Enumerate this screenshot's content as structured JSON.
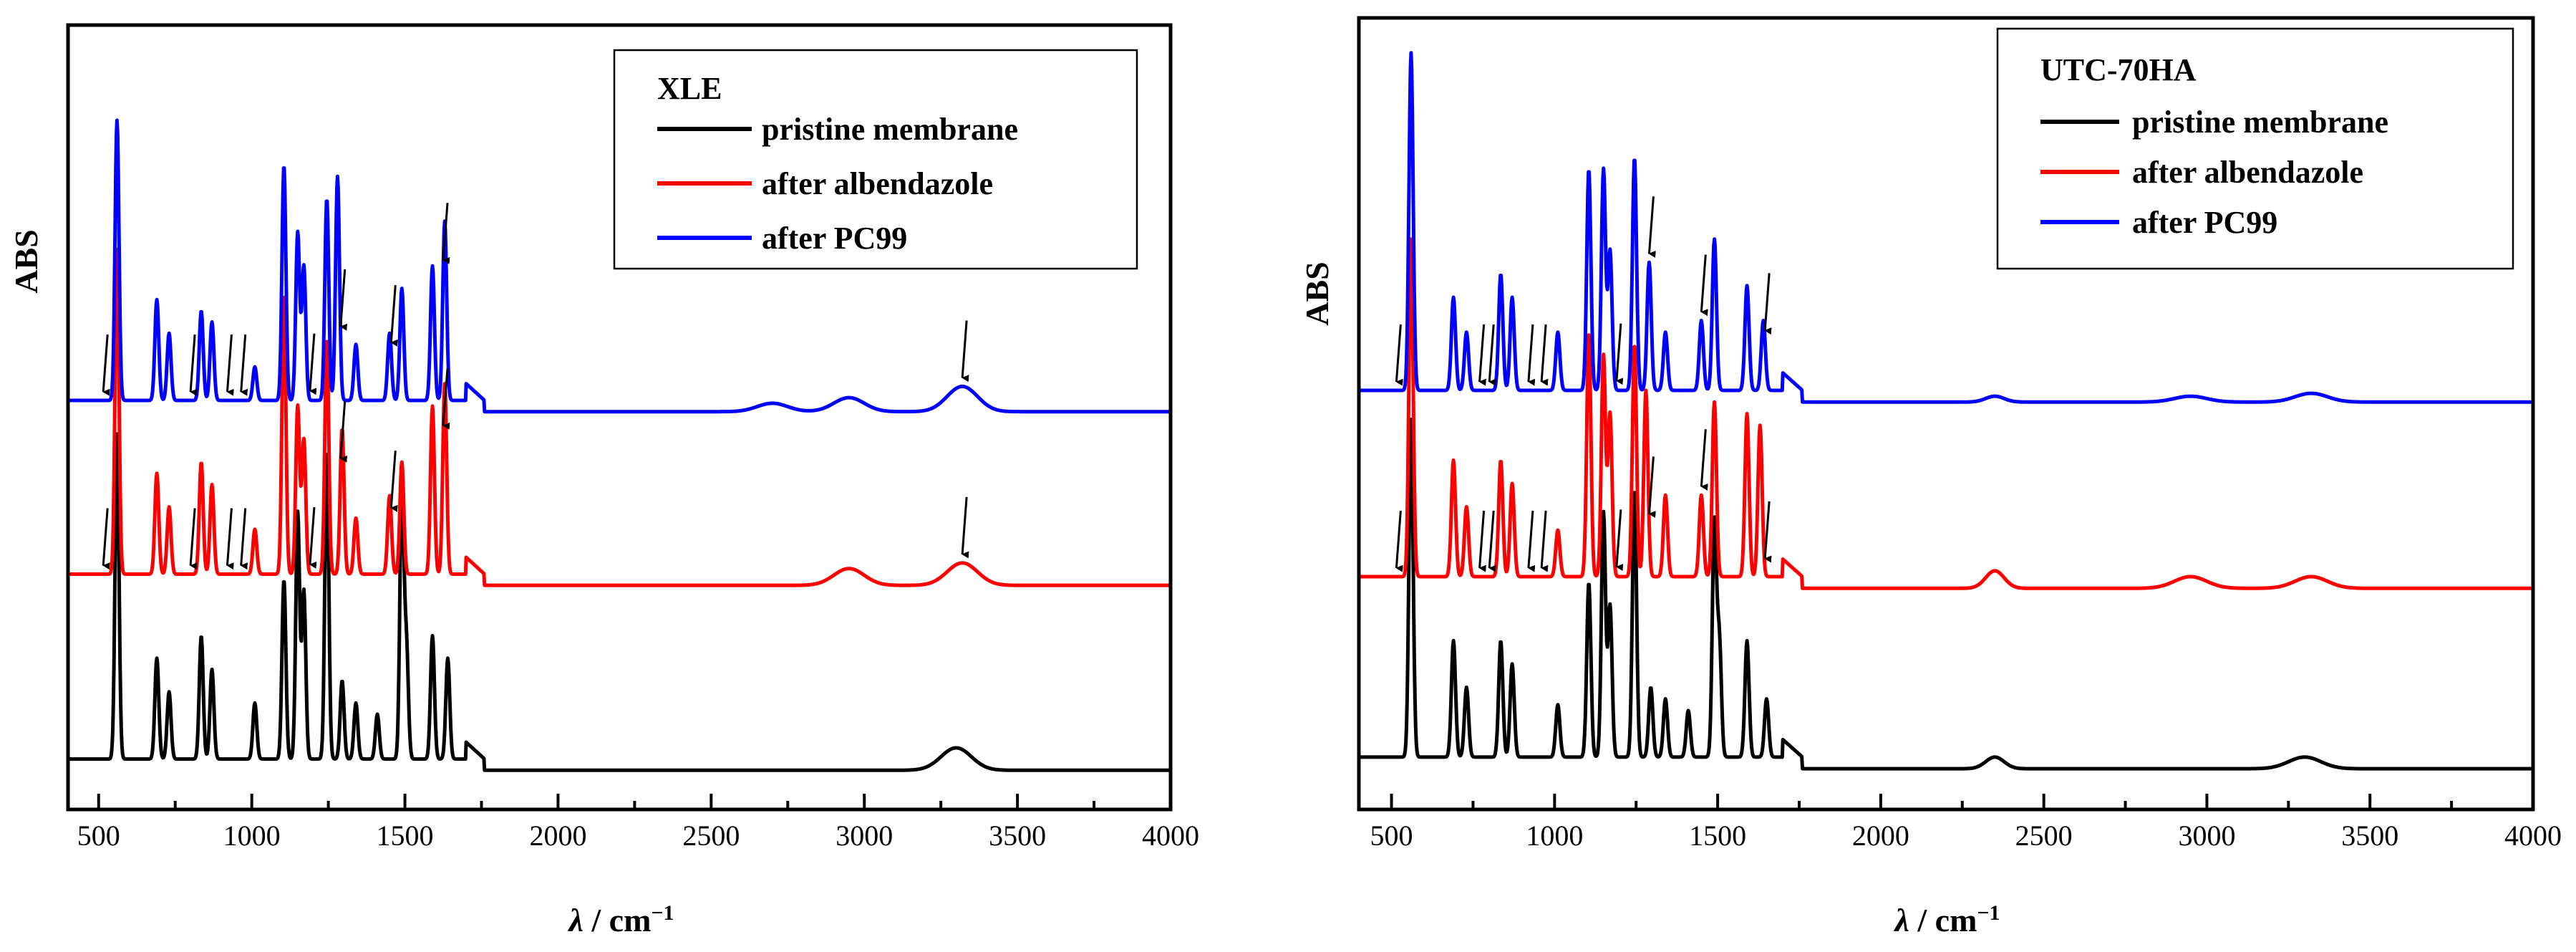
{
  "chart_data": [
    {
      "type": "line",
      "title": "XLE",
      "xlabel_symbol": "λ",
      "xlabel_unit": " / cm",
      "xlabel_exp": "−1",
      "ylabel": "ABS",
      "xlim": [
        400,
        4000
      ],
      "xticks": [
        500,
        1000,
        1500,
        2000,
        2500,
        3000,
        3500,
        4000
      ],
      "legend_position": "top-right",
      "series": [
        {
          "name": "pristine membrane",
          "color": "#000000",
          "baseline": 0.15,
          "peaks": [
            [
              560,
              0.58
            ],
            [
              690,
              0.18
            ],
            [
              730,
              0.12
            ],
            [
              835,
              0.22
            ],
            [
              870,
              0.16
            ],
            [
              1010,
              0.1
            ],
            [
              1105,
              0.32
            ],
            [
              1150,
              0.44
            ],
            [
              1170,
              0.3
            ],
            [
              1245,
              0.55
            ],
            [
              1295,
              0.14
            ],
            [
              1340,
              0.1
            ],
            [
              1410,
              0.08
            ],
            [
              1490,
              0.5
            ],
            [
              1505,
              0.2
            ],
            [
              1590,
              0.22
            ],
            [
              1640,
              0.18
            ],
            [
              3300,
              0.04
            ]
          ]
        },
        {
          "name": "after albendazole",
          "color": "#ff0000",
          "baseline": 0.48,
          "peaks": [
            [
              560,
              0.58
            ],
            [
              690,
              0.18
            ],
            [
              730,
              0.12
            ],
            [
              835,
              0.2
            ],
            [
              870,
              0.16
            ],
            [
              1010,
              0.08
            ],
            [
              1105,
              0.5
            ],
            [
              1150,
              0.3
            ],
            [
              1170,
              0.24
            ],
            [
              1245,
              0.42
            ],
            [
              1295,
              0.26
            ],
            [
              1340,
              0.1
            ],
            [
              1450,
              0.14
            ],
            [
              1490,
              0.2
            ],
            [
              1590,
              0.3
            ],
            [
              1630,
              0.34
            ],
            [
              2950,
              0.03
            ],
            [
              3320,
              0.04
            ]
          ]
        },
        {
          "name": "after PC99",
          "color": "#0000ff",
          "baseline": 0.79,
          "peaks": [
            [
              560,
              0.5
            ],
            [
              690,
              0.18
            ],
            [
              730,
              0.12
            ],
            [
              835,
              0.16
            ],
            [
              870,
              0.14
            ],
            [
              1010,
              0.06
            ],
            [
              1105,
              0.42
            ],
            [
              1150,
              0.3
            ],
            [
              1170,
              0.24
            ],
            [
              1245,
              0.36
            ],
            [
              1280,
              0.4
            ],
            [
              1340,
              0.1
            ],
            [
              1450,
              0.12
            ],
            [
              1490,
              0.2
            ],
            [
              1590,
              0.24
            ],
            [
              1630,
              0.32
            ],
            [
              2700,
              0.015
            ],
            [
              2950,
              0.025
            ],
            [
              3320,
              0.045
            ]
          ]
        }
      ],
      "arrows": [
        {
          "series": 2,
          "x": 515
        },
        {
          "series": 2,
          "x": 800
        },
        {
          "series": 2,
          "x": 920
        },
        {
          "series": 2,
          "x": 965
        },
        {
          "series": 2,
          "x": 1190
        },
        {
          "series": 2,
          "x": 1290
        },
        {
          "series": 2,
          "x": 1455
        },
        {
          "series": 2,
          "x": 1625
        },
        {
          "series": 2,
          "x": 3320
        },
        {
          "series": 1,
          "x": 515
        },
        {
          "series": 1,
          "x": 800
        },
        {
          "series": 1,
          "x": 920
        },
        {
          "series": 1,
          "x": 965
        },
        {
          "series": 1,
          "x": 1190
        },
        {
          "series": 1,
          "x": 1290
        },
        {
          "series": 1,
          "x": 1455
        },
        {
          "series": 1,
          "x": 1625
        },
        {
          "series": 1,
          "x": 3320
        }
      ]
    },
    {
      "type": "line",
      "title": "UTC-70HA",
      "xlabel_symbol": "λ",
      "xlabel_unit": " / cm",
      "xlabel_exp": "−1",
      "ylabel": "ABS",
      "xlim": [
        400,
        4000
      ],
      "xticks": [
        500,
        1000,
        1500,
        2000,
        2500,
        3000,
        3500,
        4000
      ],
      "legend_position": "top-right",
      "series": [
        {
          "name": "pristine membrane",
          "color": "#000000",
          "baseline": 0.15,
          "peaks": [
            [
              560,
              0.58
            ],
            [
              690,
              0.2
            ],
            [
              730,
              0.12
            ],
            [
              835,
              0.2
            ],
            [
              870,
              0.16
            ],
            [
              1010,
              0.09
            ],
            [
              1105,
              0.3
            ],
            [
              1150,
              0.42
            ],
            [
              1170,
              0.26
            ],
            [
              1245,
              0.46
            ],
            [
              1295,
              0.12
            ],
            [
              1340,
              0.1
            ],
            [
              1410,
              0.08
            ],
            [
              1490,
              0.4
            ],
            [
              1505,
              0.2
            ],
            [
              1590,
              0.2
            ],
            [
              1650,
              0.1
            ],
            [
              2350,
              0.02
            ],
            [
              3300,
              0.02
            ]
          ]
        },
        {
          "name": "after albendazole",
          "color": "#ff0000",
          "baseline": 0.46,
          "peaks": [
            [
              560,
              0.58
            ],
            [
              690,
              0.2
            ],
            [
              730,
              0.12
            ],
            [
              835,
              0.2
            ],
            [
              870,
              0.16
            ],
            [
              1010,
              0.08
            ],
            [
              1105,
              0.42
            ],
            [
              1150,
              0.38
            ],
            [
              1170,
              0.28
            ],
            [
              1245,
              0.4
            ],
            [
              1280,
              0.32
            ],
            [
              1340,
              0.14
            ],
            [
              1450,
              0.14
            ],
            [
              1490,
              0.3
            ],
            [
              1590,
              0.28
            ],
            [
              1630,
              0.26
            ],
            [
              2350,
              0.03
            ],
            [
              2950,
              0.02
            ],
            [
              3320,
              0.02
            ]
          ]
        },
        {
          "name": "after PC99",
          "color": "#0000ff",
          "baseline": 0.78,
          "peaks": [
            [
              560,
              0.58
            ],
            [
              690,
              0.16
            ],
            [
              730,
              0.1
            ],
            [
              835,
              0.2
            ],
            [
              870,
              0.16
            ],
            [
              1010,
              0.1
            ],
            [
              1105,
              0.38
            ],
            [
              1150,
              0.38
            ],
            [
              1170,
              0.24
            ],
            [
              1245,
              0.4
            ],
            [
              1290,
              0.22
            ],
            [
              1340,
              0.1
            ],
            [
              1450,
              0.12
            ],
            [
              1490,
              0.26
            ],
            [
              1590,
              0.18
            ],
            [
              1640,
              0.12
            ],
            [
              2350,
              0.01
            ],
            [
              2950,
              0.01
            ],
            [
              3320,
              0.015
            ]
          ]
        }
      ],
      "arrows": [
        {
          "series": 2,
          "x": 515
        },
        {
          "series": 2,
          "x": 770
        },
        {
          "series": 2,
          "x": 800
        },
        {
          "series": 2,
          "x": 920
        },
        {
          "series": 2,
          "x": 960
        },
        {
          "series": 2,
          "x": 1190
        },
        {
          "series": 2,
          "x": 1290
        },
        {
          "series": 2,
          "x": 1450
        },
        {
          "series": 2,
          "x": 1645
        },
        {
          "series": 1,
          "x": 515
        },
        {
          "series": 1,
          "x": 770
        },
        {
          "series": 1,
          "x": 800
        },
        {
          "series": 1,
          "x": 920
        },
        {
          "series": 1,
          "x": 960
        },
        {
          "series": 1,
          "x": 1190
        },
        {
          "series": 1,
          "x": 1290
        },
        {
          "series": 1,
          "x": 1450
        },
        {
          "series": 1,
          "x": 1645
        }
      ]
    }
  ]
}
